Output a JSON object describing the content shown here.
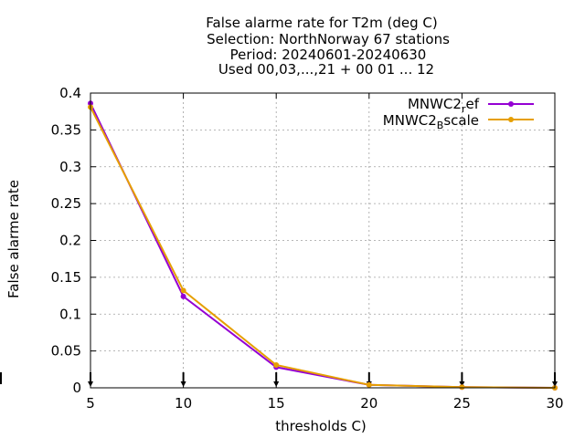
{
  "chart_data": {
    "type": "line",
    "title_lines": [
      "False alarme rate  for T2m (deg C)",
      "Selection: NorthNorway     67 stations",
      "Period: 20240601-20240630",
      "Used 00,03,...,21 + 00 01 ... 12"
    ],
    "xlabel": "thresholds C)",
    "ylabel": "False alarme rate",
    "x": [
      5,
      10,
      15,
      20,
      25,
      30
    ],
    "xlim": [
      5,
      30
    ],
    "ylim": [
      0,
      0.4
    ],
    "xticks": [
      "5",
      "10",
      "15",
      "20",
      "25",
      "30"
    ],
    "yticks": [
      "0",
      "0.05",
      "0.1",
      "0.15",
      "0.2",
      "0.25",
      "0.3",
      "0.35",
      "0.4"
    ],
    "grid": true,
    "legend_position": "top-right",
    "series": [
      {
        "legend_main": "MNWC2",
        "legend_sub": "r",
        "legend_tail": "ef",
        "color": "#9400d3",
        "values": [
          0.386,
          0.124,
          0.028,
          0.004,
          0.001,
          0.0
        ]
      },
      {
        "legend_main": "MNWC2",
        "legend_sub": "B",
        "legend_tail": "scale",
        "color": "#e69f00",
        "values": [
          0.381,
          0.132,
          0.031,
          0.004,
          0.001,
          0.0
        ]
      }
    ]
  }
}
